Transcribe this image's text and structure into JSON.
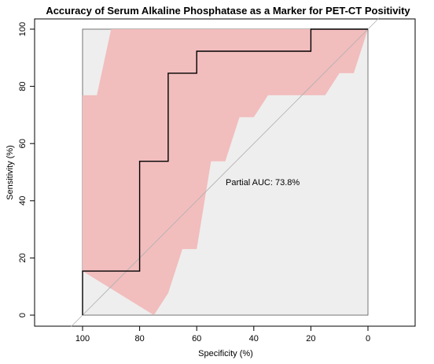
{
  "chart_data": {
    "type": "line",
    "title": "Accuracy of Serum Alkaline Phosphatase as a Marker for PET-CT Positivity",
    "xlabel": "Specificity (%)",
    "ylabel": "Sensitivity (%)",
    "x_reversed": true,
    "xlim": [
      100,
      0
    ],
    "ylim": [
      0,
      100
    ],
    "x_ticks": [
      100,
      80,
      60,
      40,
      20,
      0
    ],
    "x_tick_labels": [
      "100",
      "80",
      "60",
      "40",
      "20",
      "0"
    ],
    "y_ticks": [
      0,
      20,
      40,
      60,
      80,
      100
    ],
    "y_tick_labels": [
      "0",
      "20",
      "40",
      "60",
      "80",
      "100"
    ],
    "annotation": "Partial AUC: 73.8%",
    "colors": {
      "partial_region_fill": "#eeeeee",
      "confidence_band_fill": "#f2bdbd",
      "roc_line": "#000000",
      "diagonal_line": "#b0b0b0",
      "box_border": "#000000"
    },
    "partial_region": {
      "specificity": [
        100,
        0
      ],
      "sensitivity": [
        0,
        100
      ]
    },
    "roc_curve": {
      "specificity": [
        100,
        100,
        80,
        80,
        70,
        70,
        60,
        60,
        20,
        20,
        0
      ],
      "sensitivity": [
        0,
        15.4,
        15.4,
        53.8,
        53.8,
        84.6,
        84.6,
        92.3,
        92.3,
        100,
        100
      ]
    },
    "confidence_band": {
      "upper": {
        "specificity": [
          100,
          100,
          95,
          90,
          0
        ],
        "sensitivity": [
          15.4,
          76.9,
          76.9,
          100,
          100
        ]
      },
      "lower": {
        "specificity": [
          0,
          5,
          10,
          15,
          35,
          40,
          45,
          50,
          55,
          60,
          65,
          70,
          75
        ],
        "sensitivity": [
          100,
          84.6,
          84.6,
          76.9,
          76.9,
          69.2,
          69.2,
          53.8,
          53.8,
          23.1,
          23.1,
          7.7,
          0
        ]
      }
    }
  }
}
